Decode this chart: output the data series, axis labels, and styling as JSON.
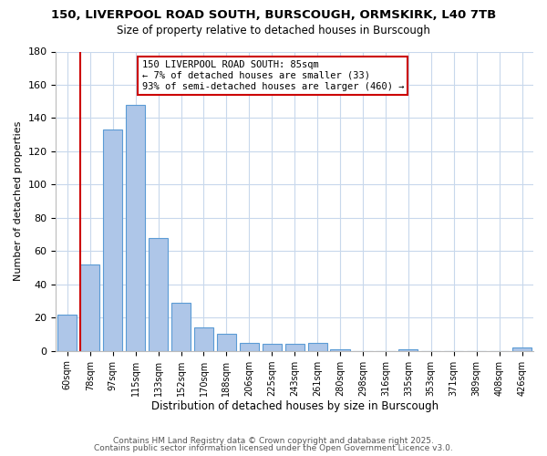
{
  "title": "150, LIVERPOOL ROAD SOUTH, BURSCOUGH, ORMSKIRK, L40 7TB",
  "subtitle": "Size of property relative to detached houses in Burscough",
  "xlabel": "Distribution of detached houses by size in Burscough",
  "ylabel": "Number of detached properties",
  "categories": [
    "60sqm",
    "78sqm",
    "97sqm",
    "115sqm",
    "133sqm",
    "152sqm",
    "170sqm",
    "188sqm",
    "206sqm",
    "225sqm",
    "243sqm",
    "261sqm",
    "280sqm",
    "298sqm",
    "316sqm",
    "335sqm",
    "353sqm",
    "371sqm",
    "389sqm",
    "408sqm",
    "426sqm"
  ],
  "values": [
    22,
    52,
    133,
    148,
    68,
    29,
    14,
    10,
    5,
    4,
    4,
    5,
    1,
    0,
    0,
    1,
    0,
    0,
    0,
    0,
    2
  ],
  "bar_color": "#aec6e8",
  "bar_edge_color": "#5b9bd5",
  "vline_color": "#cc0000",
  "annotation_lines": [
    "150 LIVERPOOL ROAD SOUTH: 85sqm",
    "← 7% of detached houses are smaller (33)",
    "93% of semi-detached houses are larger (460) →"
  ],
  "ylim": [
    0,
    180
  ],
  "yticks": [
    0,
    20,
    40,
    60,
    80,
    100,
    120,
    140,
    160,
    180
  ],
  "footer1": "Contains HM Land Registry data © Crown copyright and database right 2025.",
  "footer2": "Contains public sector information licensed under the Open Government Licence v3.0.",
  "background_color": "#ffffff",
  "grid_color": "#c8d8ec"
}
